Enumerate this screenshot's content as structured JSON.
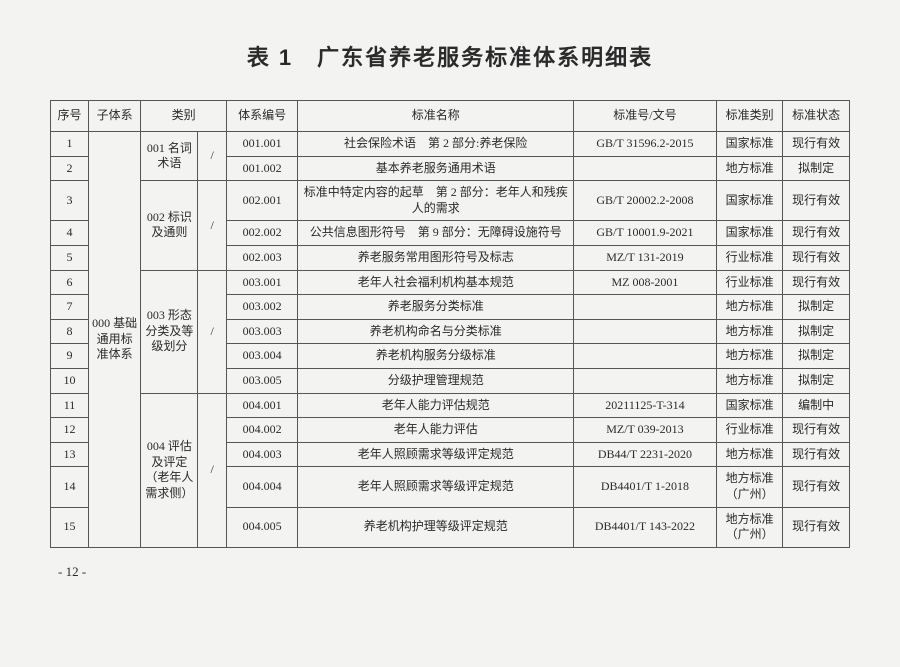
{
  "title": "表 1　广东省养老服务标准体系明细表",
  "headers": {
    "seq": "序号",
    "subsys": "子体系",
    "category": "类别",
    "syscode": "体系编号",
    "stdname": "标准名称",
    "stdnum": "标准号/文号",
    "stdtype": "标准类别",
    "stdstatus": "标准状态"
  },
  "subsystem": "000 基础通用标准体系",
  "groups": [
    {
      "label": "001 名词术语",
      "slash": "/"
    },
    {
      "label": "002 标识及通则",
      "slash": "/"
    },
    {
      "label": "003 形态分类及等级划分",
      "slash": "/"
    },
    {
      "label": "004 评估及评定（老年人需求侧）",
      "slash": "/"
    }
  ],
  "rows": [
    {
      "seq": "1",
      "code": "001.001",
      "name": "社会保险术语　第 2 部分:养老保险",
      "num": "GB/T 31596.2-2015",
      "type": "国家标准",
      "status": "现行有效"
    },
    {
      "seq": "2",
      "code": "001.002",
      "name": "基本养老服务通用术语",
      "num": "",
      "type": "地方标准",
      "status": "拟制定"
    },
    {
      "seq": "3",
      "code": "002.001",
      "name": "标准中特定内容的起草　第 2 部分：老年人和残疾人的需求",
      "num": "GB/T 20002.2-2008",
      "type": "国家标准",
      "status": "现行有效"
    },
    {
      "seq": "4",
      "code": "002.002",
      "name": "公共信息图形符号　第 9 部分：无障碍设施符号",
      "num": "GB/T 10001.9-2021",
      "type": "国家标准",
      "status": "现行有效"
    },
    {
      "seq": "5",
      "code": "002.003",
      "name": "养老服务常用图形符号及标志",
      "num": "MZ/T 131-2019",
      "type": "行业标准",
      "status": "现行有效"
    },
    {
      "seq": "6",
      "code": "003.001",
      "name": "老年人社会福利机构基本规范",
      "num": "MZ 008-2001",
      "type": "行业标准",
      "status": "现行有效"
    },
    {
      "seq": "7",
      "code": "003.002",
      "name": "养老服务分类标准",
      "num": "",
      "type": "地方标准",
      "status": "拟制定"
    },
    {
      "seq": "8",
      "code": "003.003",
      "name": "养老机构命名与分类标准",
      "num": "",
      "type": "地方标准",
      "status": "拟制定"
    },
    {
      "seq": "9",
      "code": "003.004",
      "name": "养老机构服务分级标准",
      "num": "",
      "type": "地方标准",
      "status": "拟制定"
    },
    {
      "seq": "10",
      "code": "003.005",
      "name": "分级护理管理规范",
      "num": "",
      "type": "地方标准",
      "status": "拟制定"
    },
    {
      "seq": "11",
      "code": "004.001",
      "name": "老年人能力评估规范",
      "num": "20211125-T-314",
      "type": "国家标准",
      "status": "编制中"
    },
    {
      "seq": "12",
      "code": "004.002",
      "name": "老年人能力评估",
      "num": "MZ/T 039-2013",
      "type": "行业标准",
      "status": "现行有效"
    },
    {
      "seq": "13",
      "code": "004.003",
      "name": "老年人照顾需求等级评定规范",
      "num": "DB44/T 2231-2020",
      "type": "地方标准",
      "status": "现行有效"
    },
    {
      "seq": "14",
      "code": "004.004",
      "name": "老年人照顾需求等级评定规范",
      "num": "DB4401/T 1-2018",
      "type": "地方标准（广州）",
      "status": "现行有效"
    },
    {
      "seq": "15",
      "code": "004.005",
      "name": "养老机构护理等级评定规范",
      "num": "DB4401/T 143-2022",
      "type": "地方标准（广州）",
      "status": "现行有效"
    }
  ],
  "groupSpans": [
    2,
    3,
    5,
    5
  ],
  "pageNumber": "- 12 -",
  "style": {
    "bg": "#f3f3f2",
    "border": "#555",
    "title_fontsize": 22,
    "cell_fontsize": 12
  }
}
